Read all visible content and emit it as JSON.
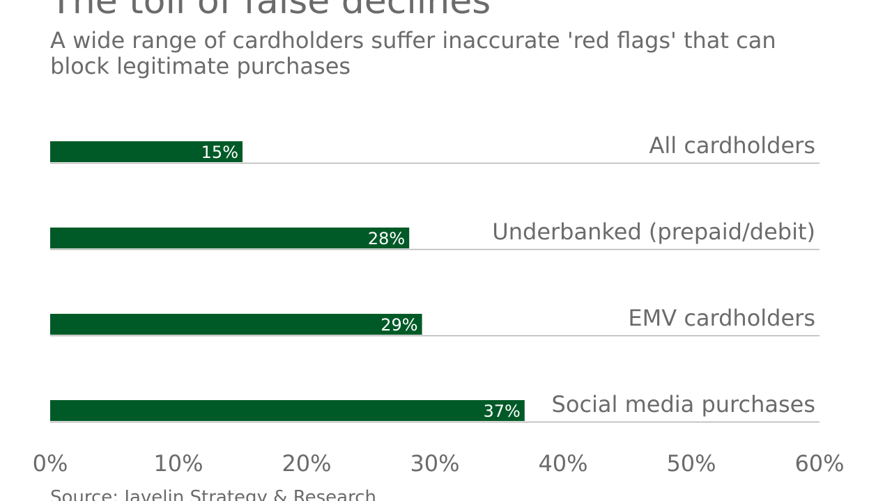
{
  "title": "The toll of false declines",
  "subtitle": "A wide range of cardholders suffer inaccurate 'red flags' that can block legitimate purchases",
  "source": "Source: Javelin Strategy & Research",
  "colors": {
    "bar": "#005a27",
    "text": "#6b6b6b",
    "label": "#ffffff",
    "rule": "#b3b3b3"
  },
  "chart_data": {
    "type": "bar",
    "orientation": "horizontal",
    "categories": [
      "All cardholders",
      "Underbanked (prepaid/debit)",
      "EMV cardholders",
      "Social media purchases"
    ],
    "values": [
      15,
      28,
      29,
      37
    ],
    "data_labels": [
      "15%",
      "28%",
      "29%",
      "37%"
    ],
    "xlim": [
      0,
      60
    ],
    "xticks": [
      0,
      10,
      20,
      30,
      40,
      50,
      60
    ],
    "xtick_labels": [
      "0%",
      "10%",
      "20%",
      "30%",
      "40%",
      "50%",
      "60%"
    ],
    "grid": false
  }
}
